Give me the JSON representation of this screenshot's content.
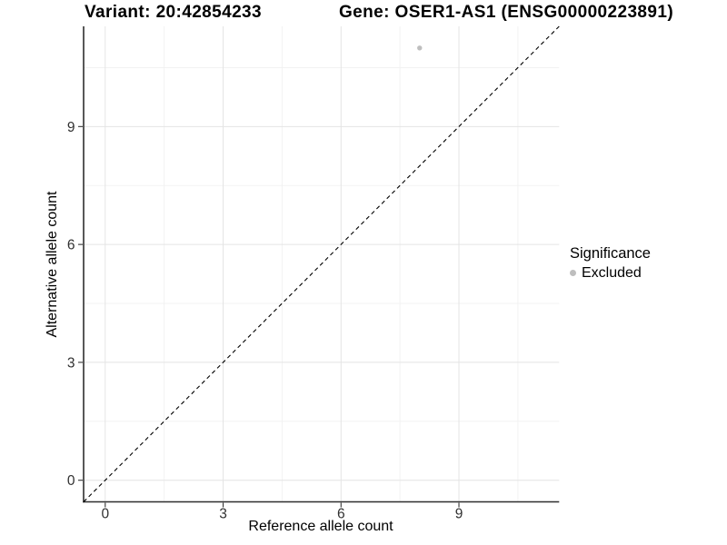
{
  "header": {
    "variant_label": "Variant: 20:42854233",
    "gene_label": "Gene: OSER1-AS1 (ENSG00000223891)"
  },
  "axes": {
    "x_title": "Reference allele count",
    "y_title": "Alternative allele count"
  },
  "legend": {
    "title": "Significance",
    "items": [
      {
        "label": "Excluded",
        "color": "#bebebe"
      }
    ]
  },
  "colors": {
    "background": "#ffffff",
    "grid_major": "#e4e4e4",
    "grid_minor": "#f1f1f1",
    "axis_line": "#2e2e2e",
    "tick_mark": "#333333",
    "tick_label": "#303030",
    "reference_line": "#000000",
    "point_excluded": "#bebebe"
  },
  "chart_data": {
    "type": "scatter",
    "title_left": "Variant: 20:42854233",
    "title_right": "Gene: OSER1-AS1 (ENSG00000223891)",
    "xlabel": "Reference allele count",
    "ylabel": "Alternative allele count",
    "xlim": [
      -0.55,
      11.55
    ],
    "ylim": [
      -0.55,
      11.55
    ],
    "x_major_ticks": [
      0,
      3,
      6,
      9
    ],
    "y_major_ticks": [
      0,
      3,
      6,
      9
    ],
    "x_minor_ticks": [
      1.5,
      4.5,
      7.5,
      10.5
    ],
    "y_minor_ticks": [
      1.5,
      4.5,
      7.5,
      10.5
    ],
    "grid": "major+minor",
    "legend_position": "right",
    "series": [
      {
        "name": "Excluded",
        "color": "#bebebe",
        "points": [
          {
            "x": 8,
            "y": 11
          }
        ]
      }
    ],
    "reference_line": {
      "type": "identity",
      "slope": 1,
      "intercept": 0,
      "style": "dashed"
    }
  }
}
